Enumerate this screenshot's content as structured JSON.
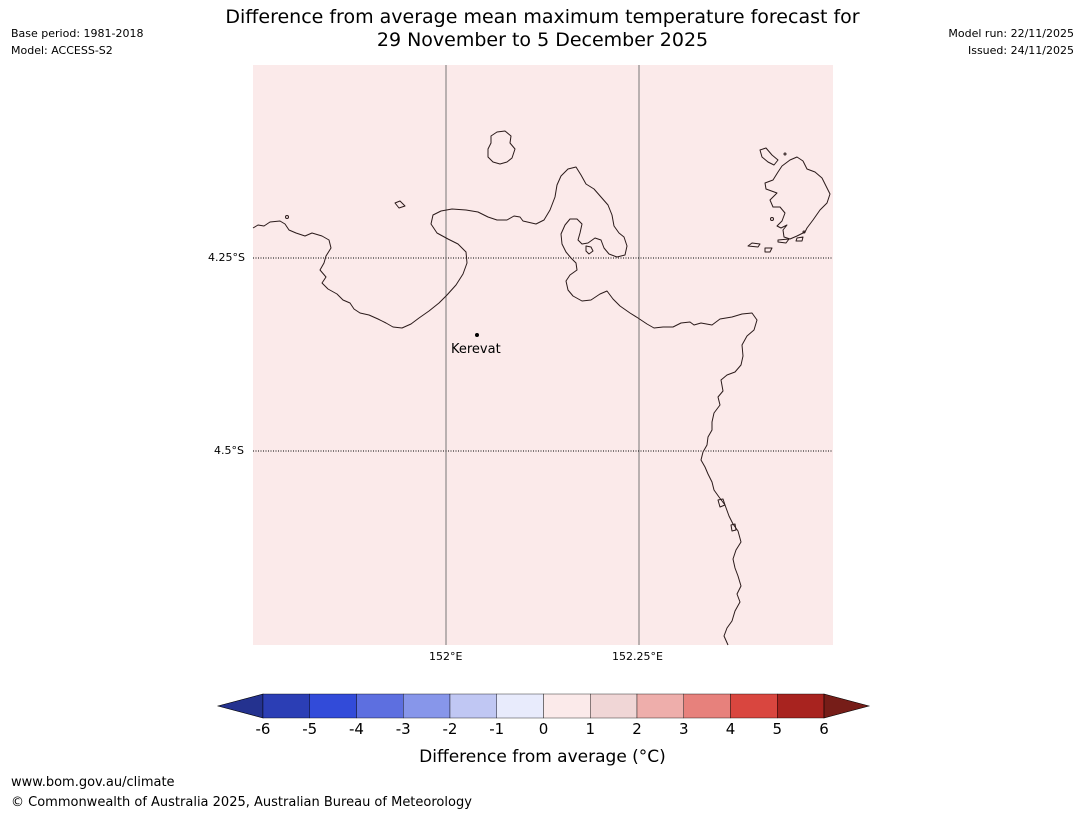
{
  "header": {
    "title_line1": "Difference from average mean maximum temperature forecast for",
    "title_line2": "29 November to 5 December 2025",
    "base_period": "Base period: 1981-2018",
    "model": "Model: ACCESS-S2",
    "model_run": "Model run: 22/11/2025",
    "issued": "Issued: 24/11/2025"
  },
  "map": {
    "background_color": "#fbeaea",
    "coastline_color": "#2a1a1a",
    "place_label": "Kerevat",
    "lat_labels": [
      "4.25°S",
      "4.5°S"
    ],
    "lon_labels": [
      "152°E",
      "152.25°E"
    ]
  },
  "colorbar": {
    "ticks": [
      "-6",
      "-5",
      "-4",
      "-3",
      "-2",
      "-1",
      "0",
      "1",
      "2",
      "3",
      "4",
      "5",
      "6"
    ],
    "colors": [
      "#24328f",
      "#2b3eb5",
      "#324bd9",
      "#5d6fe0",
      "#8796ea",
      "#c0c7f3",
      "#e8ebfc",
      "#fbeaea",
      "#f0d6d6",
      "#eeaeab",
      "#e7817c",
      "#d9463f",
      "#a8231f",
      "#761d18"
    ],
    "label": "Difference from average ($^\\circ$C)",
    "label_display": "Difference from average (°C)"
  },
  "footer": {
    "website": "www.bom.gov.au/climate",
    "copyright": "© Commonwealth of Australia 2025, Australian Bureau of Meteorology"
  }
}
